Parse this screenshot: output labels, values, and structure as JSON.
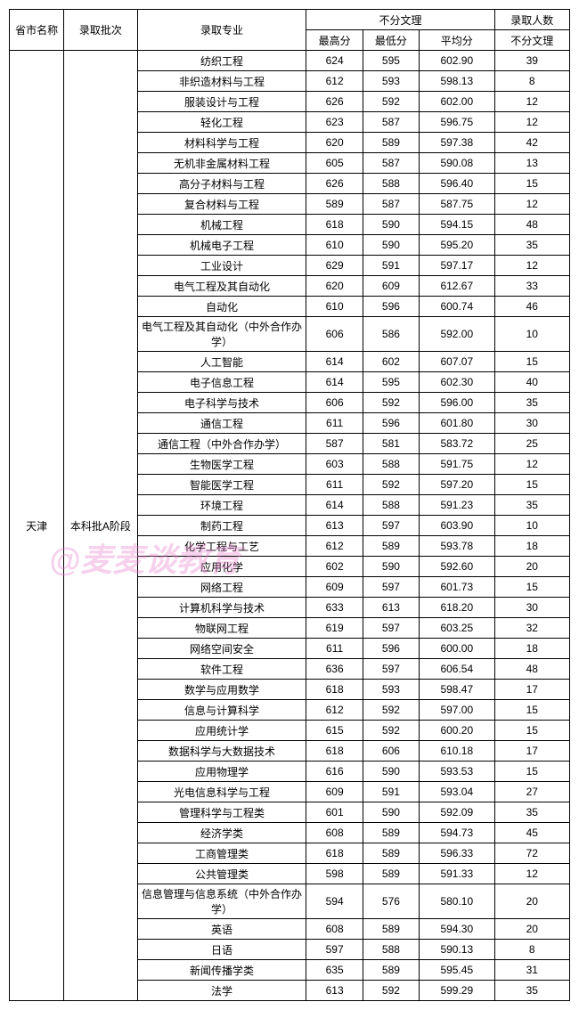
{
  "header": {
    "province": "省市名称",
    "batch": "录取批次",
    "major": "录取专业",
    "scores_group": "不分文理",
    "max": "最高分",
    "min": "最低分",
    "avg": "平均分",
    "count_group": "录取人数",
    "count_sub": "不分文理"
  },
  "province_value": "天津",
  "batch_value": "本科批A阶段",
  "rows": [
    {
      "major": "纺织工程",
      "max": "624",
      "min": "595",
      "avg": "602.90",
      "count": "39"
    },
    {
      "major": "非织造材料与工程",
      "max": "612",
      "min": "593",
      "avg": "598.13",
      "count": "8"
    },
    {
      "major": "服装设计与工程",
      "max": "626",
      "min": "592",
      "avg": "602.00",
      "count": "12"
    },
    {
      "major": "轻化工程",
      "max": "623",
      "min": "587",
      "avg": "596.75",
      "count": "12"
    },
    {
      "major": "材料科学与工程",
      "max": "620",
      "min": "589",
      "avg": "597.38",
      "count": "42"
    },
    {
      "major": "无机非金属材料工程",
      "max": "605",
      "min": "587",
      "avg": "590.08",
      "count": "13"
    },
    {
      "major": "高分子材料与工程",
      "max": "626",
      "min": "588",
      "avg": "596.40",
      "count": "15"
    },
    {
      "major": "复合材料与工程",
      "max": "589",
      "min": "587",
      "avg": "587.75",
      "count": "12"
    },
    {
      "major": "机械工程",
      "max": "618",
      "min": "590",
      "avg": "594.15",
      "count": "48"
    },
    {
      "major": "机械电子工程",
      "max": "610",
      "min": "590",
      "avg": "595.20",
      "count": "35"
    },
    {
      "major": "工业设计",
      "max": "629",
      "min": "591",
      "avg": "597.17",
      "count": "12"
    },
    {
      "major": "电气工程及其自动化",
      "max": "620",
      "min": "609",
      "avg": "612.67",
      "count": "33"
    },
    {
      "major": "自动化",
      "max": "610",
      "min": "596",
      "avg": "600.74",
      "count": "46"
    },
    {
      "major": "电气工程及其自动化（中外合作办学）",
      "max": "606",
      "min": "586",
      "avg": "592.00",
      "count": "10"
    },
    {
      "major": "人工智能",
      "max": "614",
      "min": "602",
      "avg": "607.07",
      "count": "15"
    },
    {
      "major": "电子信息工程",
      "max": "614",
      "min": "595",
      "avg": "602.30",
      "count": "40"
    },
    {
      "major": "电子科学与技术",
      "max": "606",
      "min": "592",
      "avg": "596.00",
      "count": "35"
    },
    {
      "major": "通信工程",
      "max": "611",
      "min": "596",
      "avg": "601.80",
      "count": "30"
    },
    {
      "major": "通信工程（中外合作办学）",
      "max": "587",
      "min": "581",
      "avg": "583.72",
      "count": "25"
    },
    {
      "major": "生物医学工程",
      "max": "603",
      "min": "588",
      "avg": "591.75",
      "count": "12"
    },
    {
      "major": "智能医学工程",
      "max": "611",
      "min": "592",
      "avg": "597.20",
      "count": "15"
    },
    {
      "major": "环境工程",
      "max": "614",
      "min": "588",
      "avg": "591.23",
      "count": "35"
    },
    {
      "major": "制药工程",
      "max": "613",
      "min": "597",
      "avg": "603.90",
      "count": "10"
    },
    {
      "major": "化学工程与工艺",
      "max": "612",
      "min": "589",
      "avg": "593.78",
      "count": "18"
    },
    {
      "major": "应用化学",
      "max": "602",
      "min": "590",
      "avg": "592.60",
      "count": "20"
    },
    {
      "major": "网络工程",
      "max": "609",
      "min": "597",
      "avg": "601.73",
      "count": "15"
    },
    {
      "major": "计算机科学与技术",
      "max": "633",
      "min": "613",
      "avg": "618.20",
      "count": "30"
    },
    {
      "major": "物联网工程",
      "max": "619",
      "min": "597",
      "avg": "603.25",
      "count": "32"
    },
    {
      "major": "网络空间安全",
      "max": "611",
      "min": "596",
      "avg": "600.00",
      "count": "18"
    },
    {
      "major": "软件工程",
      "max": "636",
      "min": "597",
      "avg": "606.54",
      "count": "48"
    },
    {
      "major": "数学与应用数学",
      "max": "618",
      "min": "593",
      "avg": "598.47",
      "count": "17"
    },
    {
      "major": "信息与计算科学",
      "max": "612",
      "min": "592",
      "avg": "597.00",
      "count": "15"
    },
    {
      "major": "应用统计学",
      "max": "615",
      "min": "592",
      "avg": "600.20",
      "count": "15"
    },
    {
      "major": "数据科学与大数据技术",
      "max": "618",
      "min": "606",
      "avg": "610.18",
      "count": "17"
    },
    {
      "major": "应用物理学",
      "max": "616",
      "min": "590",
      "avg": "593.53",
      "count": "15"
    },
    {
      "major": "光电信息科学与工程",
      "max": "609",
      "min": "591",
      "avg": "593.04",
      "count": "27"
    },
    {
      "major": "管理科学与工程类",
      "max": "601",
      "min": "590",
      "avg": "592.09",
      "count": "35"
    },
    {
      "major": "经济学类",
      "max": "608",
      "min": "589",
      "avg": "594.73",
      "count": "45"
    },
    {
      "major": "工商管理类",
      "max": "618",
      "min": "589",
      "avg": "596.33",
      "count": "72"
    },
    {
      "major": "公共管理类",
      "max": "598",
      "min": "589",
      "avg": "591.33",
      "count": "12"
    },
    {
      "major": "信息管理与信息系统（中外合作办学）",
      "max": "594",
      "min": "576",
      "avg": "580.10",
      "count": "20"
    },
    {
      "major": "英语",
      "max": "608",
      "min": "589",
      "avg": "594.30",
      "count": "20"
    },
    {
      "major": "日语",
      "max": "597",
      "min": "588",
      "avg": "590.13",
      "count": "8"
    },
    {
      "major": "新闻传播学类",
      "max": "635",
      "min": "589",
      "avg": "595.45",
      "count": "31"
    },
    {
      "major": "法学",
      "max": "613",
      "min": "592",
      "avg": "599.29",
      "count": "35"
    }
  ],
  "watermark": "@麦麦谈教育",
  "col_widths": {
    "province": 58,
    "batch": 78,
    "major": 180,
    "max": 60,
    "min": 60,
    "avg": 80,
    "count": 80
  }
}
